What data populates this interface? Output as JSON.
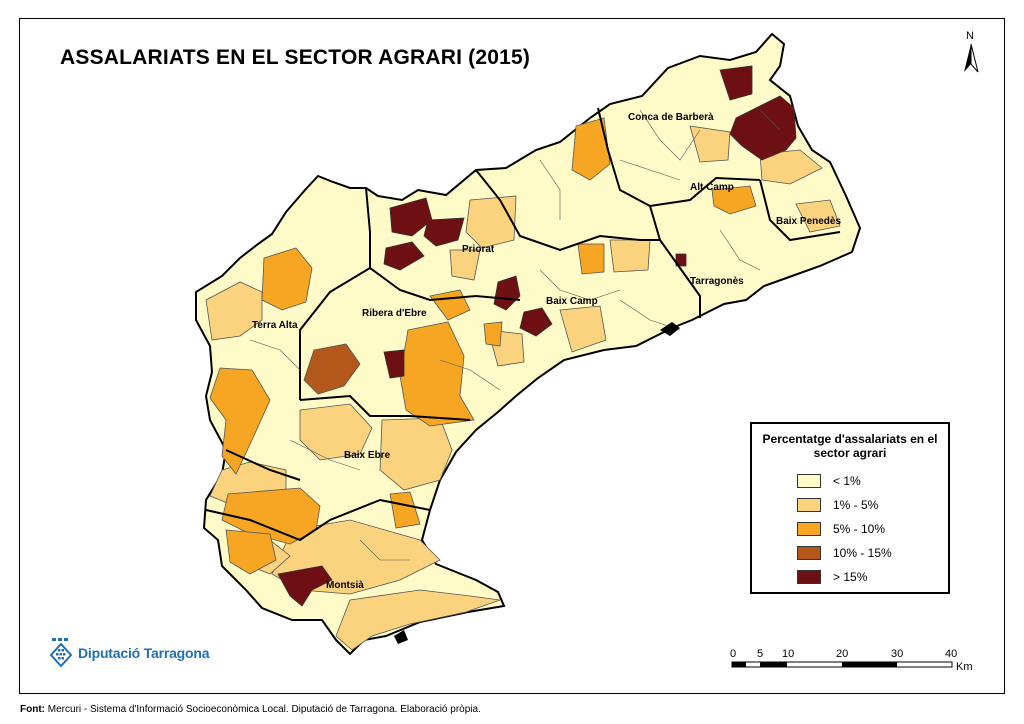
{
  "title": "ASSALARIATS EN EL SECTOR AGRARI (2015)",
  "north_label": "N",
  "legend": {
    "title": "Percentatge d'assalariats en el sector agrari",
    "items": [
      {
        "label": "< 1%",
        "color": "#FFFBC8"
      },
      {
        "label": "1% - 5%",
        "color": "#FBD37F"
      },
      {
        "label": "5% - 10%",
        "color": "#F6A623"
      },
      {
        "label": "10% - 15%",
        "color": "#B3581A"
      },
      {
        "label": "> 15%",
        "color": "#6E0F13"
      }
    ]
  },
  "regions": [
    {
      "name": "Conca de Barberà"
    },
    {
      "name": "Alt Camp"
    },
    {
      "name": "Baix Penedès"
    },
    {
      "name": "Priorat"
    },
    {
      "name": "Tarragonès"
    },
    {
      "name": "Baix Camp"
    },
    {
      "name": "Ribera d'Ebre"
    },
    {
      "name": "Terra Alta"
    },
    {
      "name": "Baix Ebre"
    },
    {
      "name": "Montsià"
    }
  ],
  "scale": {
    "ticks": [
      "0",
      "5",
      "10",
      "20",
      "30",
      "40"
    ],
    "unit": "Km"
  },
  "logo_text": "Diputació Tarragona",
  "source": {
    "label": "Font:",
    "text": "Mercuri - Sistema d'Informació Socioeconòmica Local. Diputació de Tarragona. Elaboració pròpia."
  }
}
